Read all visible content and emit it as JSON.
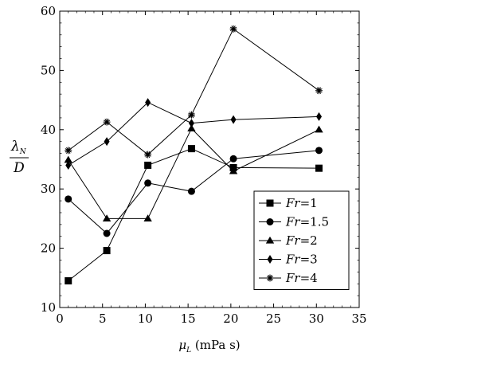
{
  "chart_data": {
    "type": "line",
    "xlabel": {
      "symbol": "μ",
      "subscript": "L",
      "unit": "(mPa s)"
    },
    "ylabel": {
      "numerator": "λ",
      "numerator_subscript": "N",
      "denominator": "D"
    },
    "xlim": [
      0,
      35
    ],
    "ylim": [
      10,
      60
    ],
    "xticks": [
      "0",
      "5",
      "10",
      "15",
      "20",
      "25",
      "30",
      "35"
    ],
    "yticks": [
      "10",
      "20",
      "30",
      "40",
      "50",
      "60"
    ],
    "grid": false,
    "legend_position": "lower-right",
    "x": [
      1,
      5.5,
      10.3,
      15.4,
      20.3,
      30.3
    ],
    "series": [
      {
        "name": "Fr=1",
        "marker": "square",
        "values": [
          14.5,
          19.6,
          34.0,
          36.8,
          33.6,
          33.5
        ]
      },
      {
        "name": "Fr=1.5",
        "marker": "circle",
        "values": [
          28.3,
          22.5,
          31.0,
          29.6,
          35.1,
          36.5
        ]
      },
      {
        "name": "Fr=2",
        "marker": "triangle",
        "values": [
          34.9,
          25.0,
          25.0,
          40.2,
          33.0,
          40.0
        ]
      },
      {
        "name": "Fr=3",
        "marker": "diamond",
        "values": [
          34.0,
          38.0,
          44.6,
          41.1,
          41.7,
          42.2
        ]
      },
      {
        "name": "Fr=4",
        "marker": "asterisk",
        "values": [
          36.5,
          41.3,
          35.8,
          42.5,
          57.0,
          46.6
        ]
      }
    ],
    "colors": {
      "line": "#000000",
      "axis": "#000000",
      "background": "#ffffff"
    }
  }
}
